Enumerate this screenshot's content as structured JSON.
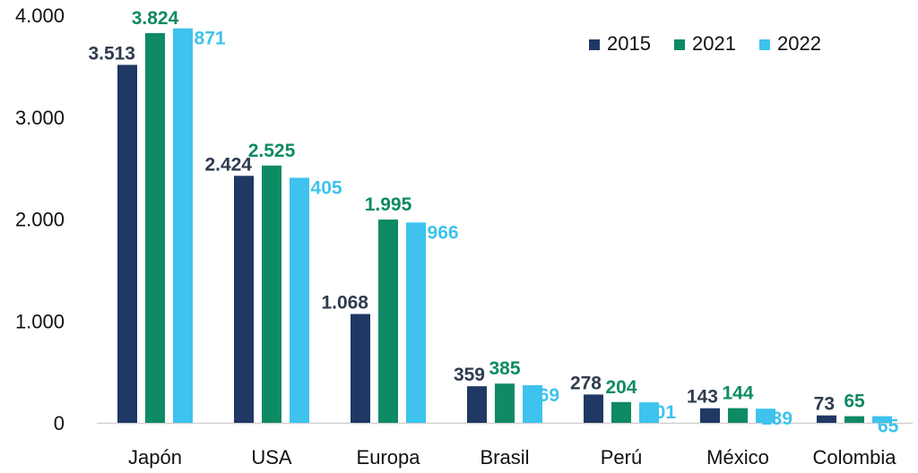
{
  "chart_data": {
    "type": "bar",
    "categories": [
      "Japón",
      "USA",
      "Europa",
      "Brasil",
      "Perú",
      "México",
      "Colombia"
    ],
    "series": [
      {
        "name": "2015",
        "color": "#1f3864",
        "label_color": "#2f3b4f",
        "values": [
          3513,
          2424,
          1068,
          359,
          278,
          143,
          73
        ],
        "labels": [
          "3.513",
          "2.424",
          "1.068",
          "359",
          "278",
          "143",
          "73"
        ]
      },
      {
        "name": "2021",
        "color": "#0e8a64",
        "label_color": "#0e8a64",
        "values": [
          3824,
          2525,
          1995,
          385,
          204,
          144,
          65
        ],
        "labels": [
          "3.824",
          "2.525",
          "1.995",
          "385",
          "204",
          "144",
          "65"
        ]
      },
      {
        "name": "2022",
        "color": "#3dc3ee",
        "label_color": "#3dc3ee",
        "values": [
          3871,
          2405,
          1966,
          369,
          201,
          139,
          65
        ],
        "labels": [
          "3.871",
          "2.405",
          "1.966",
          "369",
          "201",
          "139",
          "65"
        ]
      }
    ],
    "ylim": [
      0,
      4000
    ],
    "yticks": [
      0,
      1000,
      2000,
      3000,
      4000
    ],
    "ytick_labels": [
      "0",
      "1.000",
      "2.000",
      "3.000",
      "4.000"
    ],
    "title": "",
    "xlabel": "",
    "ylabel": "",
    "legend_position": "top-right",
    "grid": false
  }
}
